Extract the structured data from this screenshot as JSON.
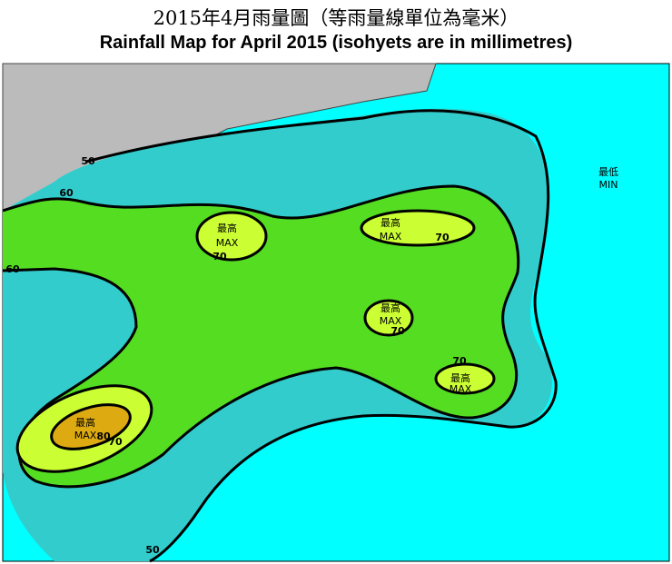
{
  "header": {
    "title_zh": "2015年4月雨量圖（等雨量線單位為毫米）",
    "title_en": "Rainfall Map for April 2015 (isohyets are in millimetres)"
  },
  "map": {
    "isohyet_labels": [
      50,
      60,
      60,
      70,
      70,
      70,
      70,
      70,
      80,
      50
    ],
    "maxima": [
      {
        "zh": "最高",
        "en": "MAX"
      },
      {
        "zh": "最高",
        "en": "MAX"
      },
      {
        "zh": "最高",
        "en": "MAX"
      },
      {
        "zh": "最高",
        "en": "MAX"
      },
      {
        "zh": "最高",
        "en": "MAX"
      }
    ],
    "minimum": {
      "zh": "最低",
      "en": "MIN"
    }
  }
}
